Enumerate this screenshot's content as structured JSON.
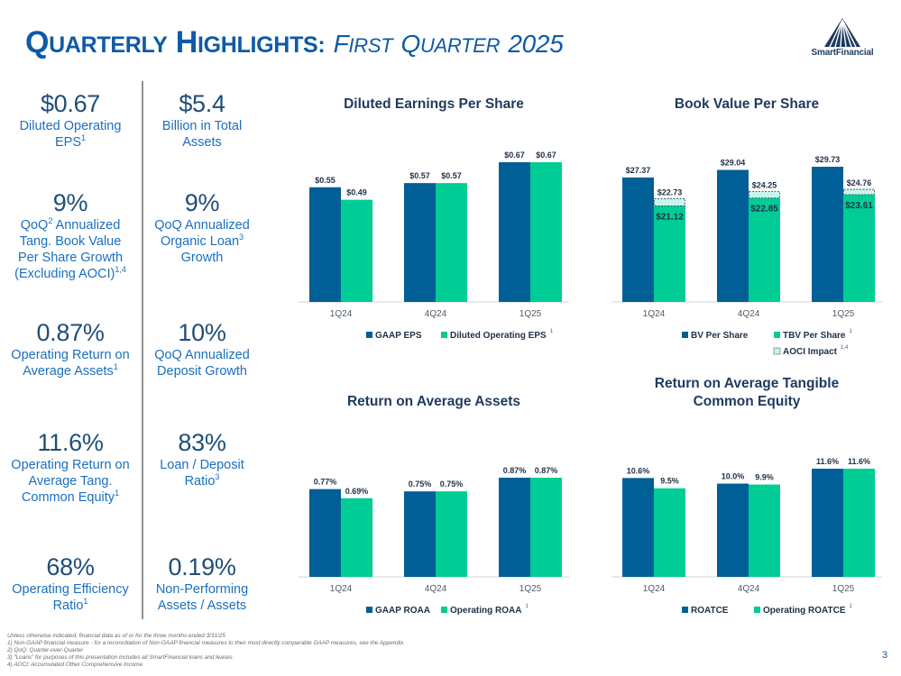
{
  "header": {
    "title_q": "Q",
    "title_uarterly": "UARTERLY",
    "title_h": "H",
    "title_ighlights": "IGHLIGHTS:",
    "title_f": "F",
    "title_irst": "IRST",
    "title_q2": "Q",
    "title_uarter": "UARTER",
    "title_year": "2025"
  },
  "logo": {
    "text": "SmartFinancial"
  },
  "metrics": {
    "m1": {
      "value": "$0.67",
      "label_a": "Diluted Operating",
      "label_b": "EPS",
      "sup": "1"
    },
    "m2": {
      "value": "$5.4",
      "label_a": "Billion in Total",
      "label_b": "Assets"
    },
    "m3": {
      "value": "9%",
      "l1": "QoQ",
      "l1_sup": "2",
      "l1_rest": " Annualized",
      "l2": "Tang. Book Value",
      "l3": "Per Share Growth",
      "l4": "(Excluding AOCI)",
      "l4_sup": "1,4"
    },
    "m4": {
      "value": "9%",
      "l1": "QoQ Annualized",
      "l2": "Organic Loan",
      "l2_sup": "3",
      "l3": "Growth"
    },
    "m5": {
      "value": "0.87%",
      "l1": "Operating Return on",
      "l2": "Average Assets",
      "l2_sup": "1"
    },
    "m6": {
      "value": "10%",
      "l1": "QoQ Annualized",
      "l2": "Deposit Growth"
    },
    "m7": {
      "value": "11.6%",
      "l1": "Operating Return on",
      "l2": "Average Tang.",
      "l3": "Common Equity",
      "l3_sup": "1"
    },
    "m8": {
      "value": "83%",
      "l1": "Loan / Deposit",
      "l2": "Ratio",
      "l2_sup": "3"
    },
    "m9": {
      "value": "68%",
      "l1": "Operating Efficiency",
      "l2": "Ratio",
      "l2_sup": "1"
    },
    "m10": {
      "value": "0.19%",
      "l1": "Non-Performing",
      "l2": "Assets / Assets"
    }
  },
  "colors": {
    "dark": "#005f96",
    "light": "#00cc95",
    "aoci": "#c6f5f0",
    "title_blue": "#0e5aa7"
  },
  "chart_data": [
    {
      "id": "eps",
      "type": "bar",
      "title": "Diluted Earnings Per Share",
      "categories": [
        "1Q24",
        "4Q24",
        "1Q25"
      ],
      "series": [
        {
          "name": "GAAP EPS",
          "values": [
            0.55,
            0.57,
            0.67
          ],
          "labels": [
            "$0.55",
            "$0.57",
            "$0.67"
          ]
        },
        {
          "name": "Diluted Operating EPS",
          "sup": "1",
          "values": [
            0.49,
            0.57,
            0.67
          ],
          "labels": [
            "$0.49",
            "$0.57",
            "$0.67"
          ]
        }
      ],
      "ylim": [
        0,
        0.67
      ]
    },
    {
      "id": "bvps",
      "type": "bar",
      "title": "Book Value Per Share",
      "categories": [
        "1Q24",
        "4Q24",
        "1Q25"
      ],
      "series": [
        {
          "name": "BV Per Share",
          "values": [
            27.37,
            29.04,
            29.73
          ],
          "labels": [
            "$27.37",
            "$29.04",
            "$29.73"
          ]
        },
        {
          "name": "TBV Per Share",
          "sup": "1",
          "values": [
            21.12,
            22.85,
            23.61
          ],
          "labels": [
            "$21.12",
            "$22.85",
            "$23.61"
          ]
        },
        {
          "name": "AOCI Impact",
          "sup": "1,4",
          "values": [
            22.73,
            24.25,
            24.76
          ],
          "labels": [
            "$22.73",
            "$24.25",
            "$24.76"
          ]
        }
      ],
      "ylim": [
        0,
        29.73
      ]
    },
    {
      "id": "roaa",
      "type": "bar",
      "title": "Return on Average Assets",
      "categories": [
        "1Q24",
        "4Q24",
        "1Q25"
      ],
      "series": [
        {
          "name": "GAAP ROAA",
          "values": [
            0.77,
            0.75,
            0.87
          ],
          "labels": [
            "0.77%",
            "0.75%",
            "0.87%"
          ]
        },
        {
          "name": "Operating ROAA",
          "sup": "1",
          "values": [
            0.69,
            0.75,
            0.87
          ],
          "labels": [
            "0.69%",
            "0.75%",
            "0.87%"
          ]
        }
      ],
      "ylim": [
        0,
        0.87
      ]
    },
    {
      "id": "roatce",
      "type": "bar",
      "title_line1": "Return on Average Tangible",
      "title_line2": "Common Equity",
      "categories": [
        "1Q24",
        "4Q24",
        "1Q25"
      ],
      "series": [
        {
          "name": "ROATCE",
          "values": [
            10.6,
            10.0,
            11.6
          ],
          "labels": [
            "10.6%",
            "10.0%",
            "11.6%"
          ]
        },
        {
          "name": "Operating ROATCE",
          "sup": "1",
          "values": [
            9.5,
            9.9,
            11.6
          ],
          "labels": [
            "9.5%",
            "9.9%",
            "11.6%"
          ]
        }
      ],
      "ylim": [
        0,
        11.6
      ]
    }
  ],
  "footnotes": {
    "intro": "Unless otherwise indicated, financial data as of or for the three months ended 3/31/25",
    "n1": "1)    Non-GAAP financial measure - for a reconciliation of Non-GAAP financial measures to their most directly comparable GAAP measures, see the Appendix",
    "n2": "2)    QoQ: Quarter-over-Quarter",
    "n3": "3)    “Loans” for purposes of this presentation includes all SmartFinancial loans and leases",
    "n4": "4)    AOCI: Accumulated Other Comprehensive Income"
  },
  "page": {
    "number": "3"
  }
}
